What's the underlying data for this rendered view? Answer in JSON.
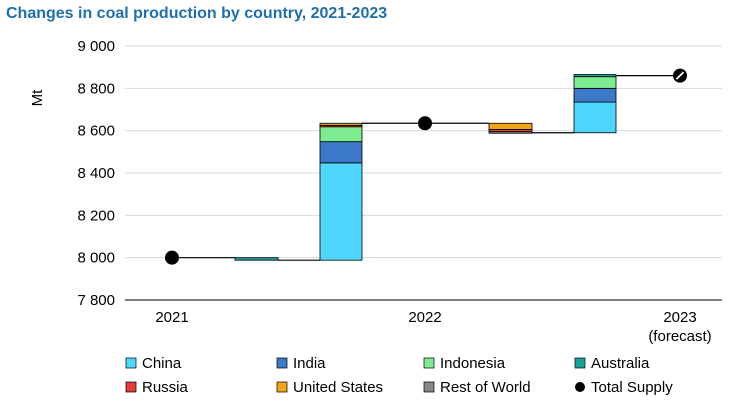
{
  "chart_data": {
    "type": "waterfall",
    "title": "Changes in coal production by country, 2021-2023",
    "ylabel": "Mt",
    "ylim": [
      7800,
      9000
    ],
    "yticks": [
      7800,
      8000,
      8200,
      8400,
      8600,
      8800,
      9000
    ],
    "ytick_labels": [
      "7 800",
      "8 000",
      "8 200",
      "8 400",
      "8 600",
      "8 800",
      "9 000"
    ],
    "grid": true,
    "legend_position": "bottom",
    "totals": [
      {
        "label": "2021",
        "value": 8000
      },
      {
        "label": "2022",
        "value": 8635
      },
      {
        "label": "2023",
        "sublabel": "(forecast)",
        "value": 8860
      }
    ],
    "change_groups": [
      {
        "from": "2021",
        "to": "2022",
        "changes": [
          {
            "series": "Australia",
            "value": -12
          },
          {
            "series": "China",
            "value": 460
          },
          {
            "series": "India",
            "value": 100
          },
          {
            "series": "Indonesia",
            "value": 75
          },
          {
            "series": "Russia",
            "value": 2
          },
          {
            "series": "United States",
            "value": 10
          }
        ]
      },
      {
        "from": "2022",
        "to": "2023",
        "changes": [
          {
            "series": "United States",
            "value": -30
          },
          {
            "series": "Russia",
            "value": -10
          },
          {
            "series": "Rest of World",
            "value": -5
          },
          {
            "series": "China",
            "value": 145
          },
          {
            "series": "India",
            "value": 65
          },
          {
            "series": "Indonesia",
            "value": 55
          },
          {
            "series": "Australia",
            "value": 10
          }
        ]
      }
    ],
    "series": [
      {
        "name": "China",
        "color": "#4fd6fc"
      },
      {
        "name": "India",
        "color": "#3d79c9"
      },
      {
        "name": "Indonesia",
        "color": "#7deb90"
      },
      {
        "name": "Australia",
        "color": "#1aa39a"
      },
      {
        "name": "Russia",
        "color": "#e53b3b"
      },
      {
        "name": "United States",
        "color": "#f2a516"
      },
      {
        "name": "Rest of World",
        "color": "#888888"
      },
      {
        "name": "Total Supply",
        "color": "#000000",
        "marker": "circle"
      }
    ]
  }
}
